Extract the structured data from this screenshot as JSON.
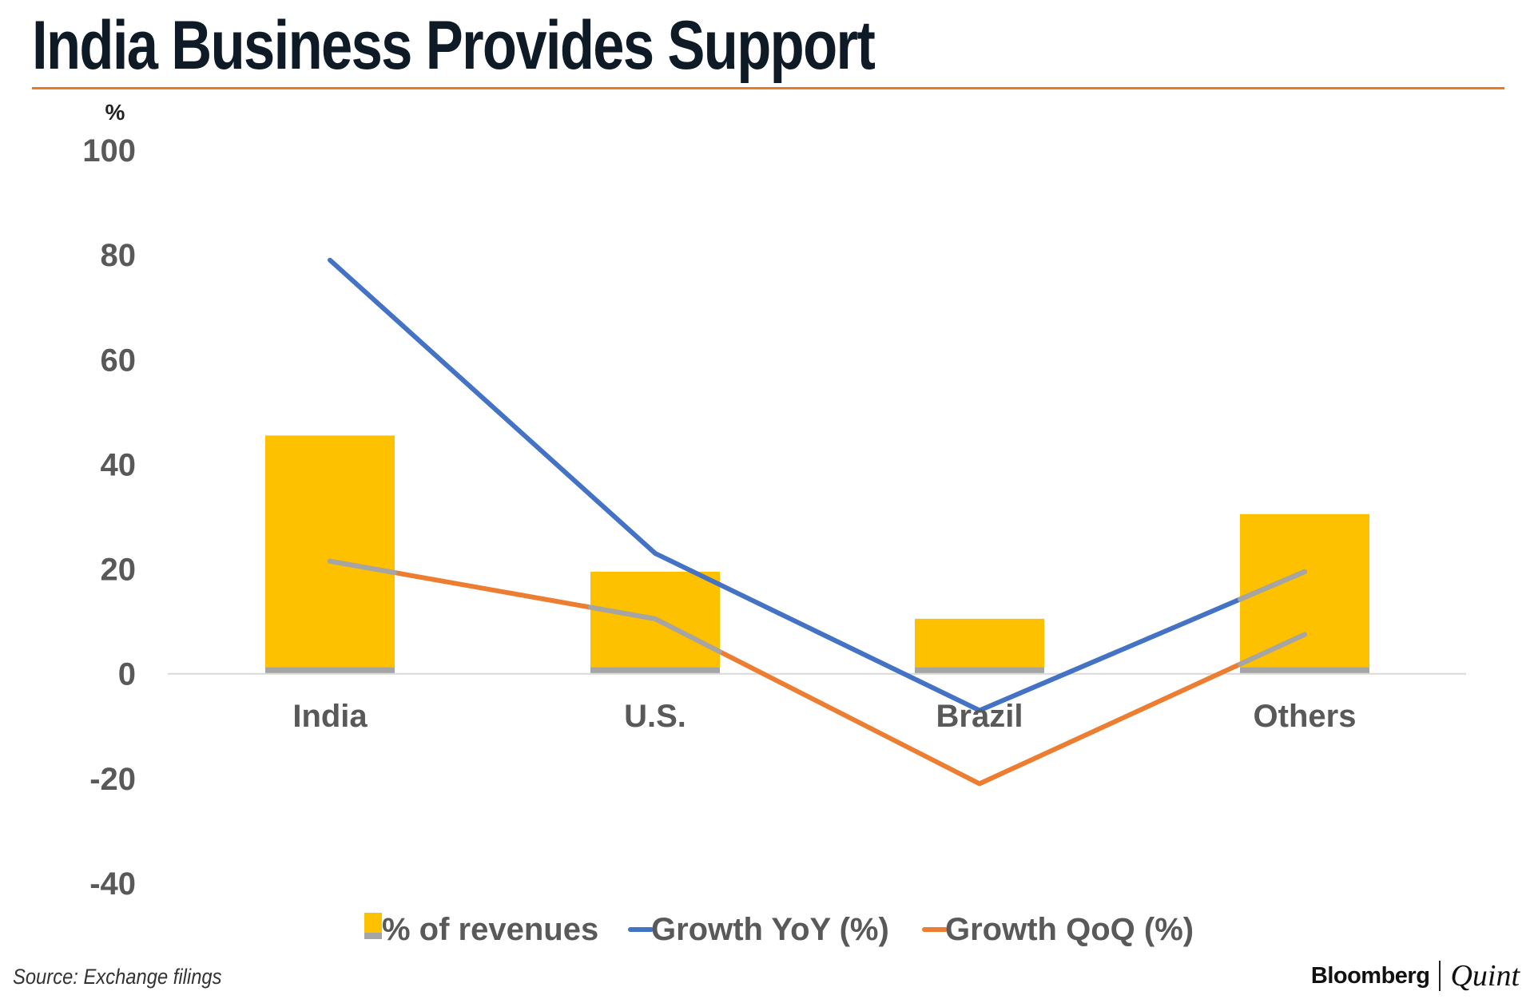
{
  "title": "India Business Provides Support",
  "source": "Source: Exchange filings",
  "brand": {
    "primary": "Bloomberg",
    "secondary": "Quint"
  },
  "colors": {
    "bar": "#fdc100",
    "bar_base": "#a5a5a5",
    "yoy": "#4472c4",
    "qoq": "#ed7d31",
    "qoq_overlay": "#a5a5a5",
    "axis_text": "#595959",
    "title_rule": "#e87a22"
  },
  "chart_data": {
    "type": "bar",
    "title": "India Business Provides Support",
    "ylabel": "%",
    "xlabel": "",
    "ylim": [
      -40,
      100
    ],
    "yticks": [
      100,
      80,
      60,
      40,
      20,
      0,
      -20,
      -40
    ],
    "ytick_labels": [
      "100",
      "80",
      "60",
      "40",
      "20",
      "0",
      "-20",
      "-40"
    ],
    "categories": [
      "India",
      "U.S.",
      "Brazil",
      "Others"
    ],
    "series": [
      {
        "name": "% of revenues",
        "type": "bar",
        "values": [
          45.5,
          19.5,
          10.5,
          30.5
        ]
      },
      {
        "name": "Growth YoY (%)",
        "type": "line",
        "values": [
          79,
          23,
          -7,
          19.5
        ]
      },
      {
        "name": "Growth QoQ (%)",
        "type": "line",
        "values": [
          21.5,
          10.5,
          -21,
          7.5
        ]
      }
    ],
    "legend": [
      "% of revenues",
      "Growth YoY (%)",
      "Growth QoQ (%)"
    ],
    "legend_position": "bottom",
    "grid": false
  }
}
